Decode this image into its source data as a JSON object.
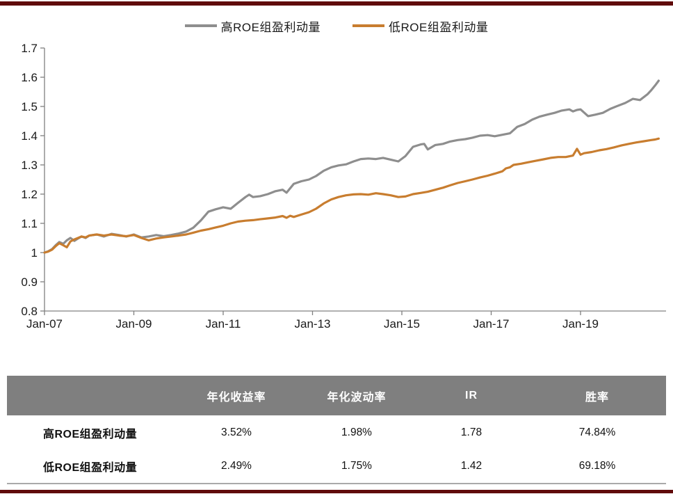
{
  "page": {
    "top_rule_color": "#600B0B",
    "bottom_rule_color": "#600B0B",
    "background": "#ffffff"
  },
  "legend": {
    "items": [
      {
        "label": "高ROE组盈利动量",
        "color": "#8e8e8e",
        "swatch": "gray-line-swatch"
      },
      {
        "label": "低ROE组盈利动量",
        "color": "#c87d2f",
        "swatch": "orange-line-swatch"
      }
    ]
  },
  "chart_data": {
    "type": "line",
    "title": "",
    "xlabel": "",
    "ylabel": "",
    "grid": false,
    "legend_position": "top",
    "axis_color": "#808080",
    "tick_label_color": "#1a1a1a",
    "x_axis": {
      "range": [
        2007.0,
        2020.92
      ],
      "tick_positions": [
        2007,
        2009,
        2011,
        2013,
        2015,
        2017,
        2019
      ],
      "tick_labels": [
        "Jan-07",
        "Jan-09",
        "Jan-11",
        "Jan-13",
        "Jan-15",
        "Jan-17",
        "Jan-19"
      ]
    },
    "y_axis": {
      "range": [
        0.8,
        1.7
      ],
      "tick_values": [
        0.8,
        0.9,
        1.0,
        1.1,
        1.2,
        1.3,
        1.4,
        1.5,
        1.6,
        1.7
      ],
      "tick_labels": [
        "0.8",
        "0.9",
        "1",
        "1.1",
        "1.2",
        "1.3",
        "1.4",
        "1.5",
        "1.6",
        "1.7"
      ]
    },
    "series": [
      {
        "name": "高ROE组盈利动量",
        "color": "#8e8e8e",
        "points": [
          [
            2007.0,
            1.0
          ],
          [
            2007.08,
            1.004
          ],
          [
            2007.17,
            1.012
          ],
          [
            2007.25,
            1.025
          ],
          [
            2007.33,
            1.036
          ],
          [
            2007.42,
            1.03
          ],
          [
            2007.5,
            1.042
          ],
          [
            2007.58,
            1.05
          ],
          [
            2007.67,
            1.04
          ],
          [
            2007.75,
            1.048
          ],
          [
            2007.83,
            1.055
          ],
          [
            2007.92,
            1.05
          ],
          [
            2008.0,
            1.058
          ],
          [
            2008.17,
            1.062
          ],
          [
            2008.33,
            1.055
          ],
          [
            2008.5,
            1.064
          ],
          [
            2008.67,
            1.06
          ],
          [
            2008.83,
            1.055
          ],
          [
            2009.0,
            1.062
          ],
          [
            2009.17,
            1.052
          ],
          [
            2009.33,
            1.055
          ],
          [
            2009.5,
            1.06
          ],
          [
            2009.67,
            1.056
          ],
          [
            2009.83,
            1.06
          ],
          [
            2010.0,
            1.065
          ],
          [
            2010.17,
            1.072
          ],
          [
            2010.33,
            1.085
          ],
          [
            2010.5,
            1.11
          ],
          [
            2010.67,
            1.14
          ],
          [
            2010.83,
            1.148
          ],
          [
            2011.0,
            1.155
          ],
          [
            2011.17,
            1.15
          ],
          [
            2011.33,
            1.17
          ],
          [
            2011.5,
            1.19
          ],
          [
            2011.58,
            1.198
          ],
          [
            2011.67,
            1.19
          ],
          [
            2011.83,
            1.193
          ],
          [
            2012.0,
            1.2
          ],
          [
            2012.17,
            1.21
          ],
          [
            2012.33,
            1.215
          ],
          [
            2012.42,
            1.205
          ],
          [
            2012.58,
            1.235
          ],
          [
            2012.75,
            1.244
          ],
          [
            2012.92,
            1.25
          ],
          [
            2013.08,
            1.262
          ],
          [
            2013.25,
            1.28
          ],
          [
            2013.42,
            1.292
          ],
          [
            2013.58,
            1.298
          ],
          [
            2013.75,
            1.302
          ],
          [
            2013.92,
            1.312
          ],
          [
            2014.08,
            1.32
          ],
          [
            2014.25,
            1.322
          ],
          [
            2014.42,
            1.32
          ],
          [
            2014.58,
            1.324
          ],
          [
            2014.75,
            1.318
          ],
          [
            2014.92,
            1.312
          ],
          [
            2015.08,
            1.33
          ],
          [
            2015.25,
            1.362
          ],
          [
            2015.42,
            1.37
          ],
          [
            2015.5,
            1.372
          ],
          [
            2015.58,
            1.353
          ],
          [
            2015.75,
            1.368
          ],
          [
            2015.92,
            1.372
          ],
          [
            2016.08,
            1.38
          ],
          [
            2016.25,
            1.385
          ],
          [
            2016.42,
            1.388
          ],
          [
            2016.58,
            1.393
          ],
          [
            2016.75,
            1.4
          ],
          [
            2016.92,
            1.402
          ],
          [
            2017.08,
            1.398
          ],
          [
            2017.25,
            1.403
          ],
          [
            2017.42,
            1.408
          ],
          [
            2017.58,
            1.43
          ],
          [
            2017.75,
            1.44
          ],
          [
            2017.92,
            1.455
          ],
          [
            2018.08,
            1.465
          ],
          [
            2018.25,
            1.472
          ],
          [
            2018.42,
            1.478
          ],
          [
            2018.58,
            1.486
          ],
          [
            2018.75,
            1.49
          ],
          [
            2018.83,
            1.483
          ],
          [
            2018.92,
            1.488
          ],
          [
            2019.0,
            1.49
          ],
          [
            2019.17,
            1.467
          ],
          [
            2019.33,
            1.472
          ],
          [
            2019.5,
            1.478
          ],
          [
            2019.67,
            1.492
          ],
          [
            2019.83,
            1.502
          ],
          [
            2020.0,
            1.512
          ],
          [
            2020.17,
            1.526
          ],
          [
            2020.33,
            1.522
          ],
          [
            2020.5,
            1.542
          ],
          [
            2020.58,
            1.555
          ],
          [
            2020.67,
            1.572
          ],
          [
            2020.75,
            1.588
          ]
        ]
      },
      {
        "name": "低ROE组盈利动量",
        "color": "#c87d2f",
        "points": [
          [
            2007.0,
            1.0
          ],
          [
            2007.08,
            1.003
          ],
          [
            2007.17,
            1.01
          ],
          [
            2007.25,
            1.022
          ],
          [
            2007.33,
            1.032
          ],
          [
            2007.42,
            1.025
          ],
          [
            2007.5,
            1.018
          ],
          [
            2007.58,
            1.038
          ],
          [
            2007.67,
            1.045
          ],
          [
            2007.75,
            1.05
          ],
          [
            2007.83,
            1.055
          ],
          [
            2007.92,
            1.052
          ],
          [
            2008.0,
            1.058
          ],
          [
            2008.17,
            1.062
          ],
          [
            2008.33,
            1.058
          ],
          [
            2008.5,
            1.062
          ],
          [
            2008.67,
            1.058
          ],
          [
            2008.83,
            1.056
          ],
          [
            2009.0,
            1.06
          ],
          [
            2009.17,
            1.05
          ],
          [
            2009.33,
            1.042
          ],
          [
            2009.5,
            1.048
          ],
          [
            2009.67,
            1.052
          ],
          [
            2009.83,
            1.055
          ],
          [
            2010.0,
            1.058
          ],
          [
            2010.17,
            1.062
          ],
          [
            2010.33,
            1.068
          ],
          [
            2010.5,
            1.075
          ],
          [
            2010.67,
            1.08
          ],
          [
            2010.83,
            1.086
          ],
          [
            2011.0,
            1.092
          ],
          [
            2011.17,
            1.1
          ],
          [
            2011.33,
            1.106
          ],
          [
            2011.5,
            1.109
          ],
          [
            2011.67,
            1.111
          ],
          [
            2011.83,
            1.114
          ],
          [
            2012.0,
            1.117
          ],
          [
            2012.17,
            1.12
          ],
          [
            2012.33,
            1.125
          ],
          [
            2012.42,
            1.119
          ],
          [
            2012.5,
            1.126
          ],
          [
            2012.58,
            1.122
          ],
          [
            2012.75,
            1.13
          ],
          [
            2012.92,
            1.138
          ],
          [
            2013.08,
            1.15
          ],
          [
            2013.25,
            1.168
          ],
          [
            2013.42,
            1.182
          ],
          [
            2013.58,
            1.19
          ],
          [
            2013.75,
            1.196
          ],
          [
            2013.92,
            1.199
          ],
          [
            2014.08,
            1.2
          ],
          [
            2014.25,
            1.198
          ],
          [
            2014.42,
            1.203
          ],
          [
            2014.58,
            1.2
          ],
          [
            2014.75,
            1.196
          ],
          [
            2014.92,
            1.19
          ],
          [
            2015.08,
            1.192
          ],
          [
            2015.25,
            1.2
          ],
          [
            2015.42,
            1.204
          ],
          [
            2015.58,
            1.208
          ],
          [
            2015.75,
            1.215
          ],
          [
            2015.92,
            1.222
          ],
          [
            2016.08,
            1.23
          ],
          [
            2016.25,
            1.238
          ],
          [
            2016.42,
            1.244
          ],
          [
            2016.58,
            1.25
          ],
          [
            2016.75,
            1.257
          ],
          [
            2016.92,
            1.263
          ],
          [
            2017.08,
            1.27
          ],
          [
            2017.25,
            1.278
          ],
          [
            2017.33,
            1.288
          ],
          [
            2017.42,
            1.292
          ],
          [
            2017.5,
            1.3
          ],
          [
            2017.67,
            1.304
          ],
          [
            2017.83,
            1.309
          ],
          [
            2018.0,
            1.314
          ],
          [
            2018.17,
            1.319
          ],
          [
            2018.33,
            1.324
          ],
          [
            2018.5,
            1.327
          ],
          [
            2018.67,
            1.327
          ],
          [
            2018.83,
            1.332
          ],
          [
            2018.92,
            1.355
          ],
          [
            2019.0,
            1.335
          ],
          [
            2019.08,
            1.34
          ],
          [
            2019.25,
            1.344
          ],
          [
            2019.42,
            1.35
          ],
          [
            2019.58,
            1.354
          ],
          [
            2019.75,
            1.36
          ],
          [
            2019.92,
            1.367
          ],
          [
            2020.08,
            1.372
          ],
          [
            2020.25,
            1.377
          ],
          [
            2020.42,
            1.381
          ],
          [
            2020.58,
            1.385
          ],
          [
            2020.67,
            1.387
          ],
          [
            2020.75,
            1.39
          ]
        ]
      }
    ]
  },
  "table": {
    "header_bg": "#7f7f7f",
    "headers": [
      "",
      "年化收益率",
      "年化波动率",
      "IR",
      "胜率"
    ],
    "rows": [
      {
        "label": "高ROE组盈利动量",
        "values": [
          "3.52%",
          "1.98%",
          "1.78",
          "74.84%"
        ]
      },
      {
        "label": "低ROE组盈利动量",
        "values": [
          "2.49%",
          "1.75%",
          "1.42",
          "69.18%"
        ]
      }
    ]
  }
}
